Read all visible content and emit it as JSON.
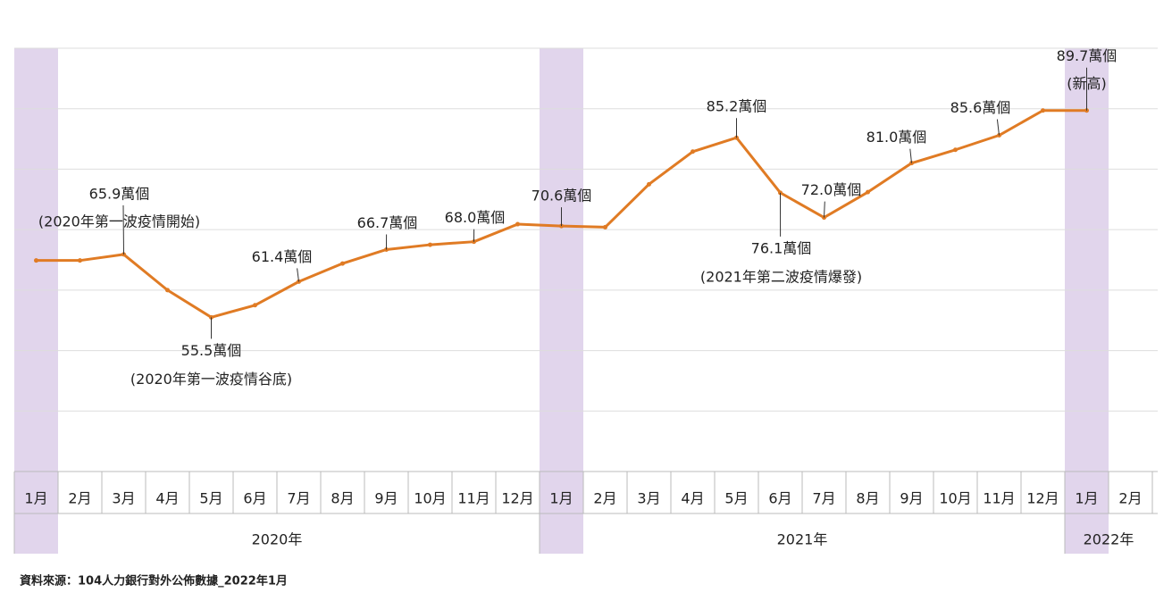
{
  "chart_data": {
    "type": "line",
    "categories": [
      "1月",
      "2月",
      "3月",
      "4月",
      "5月",
      "6月",
      "7月",
      "8月",
      "9月",
      "10月",
      "11月",
      "12月",
      "1月",
      "2月",
      "3月",
      "4月",
      "5月",
      "6月",
      "7月",
      "8月",
      "9月",
      "10月",
      "11月",
      "12月",
      "1月",
      "2月"
    ],
    "groups": [
      "2020年",
      "2021年",
      "2022年"
    ],
    "series": [
      {
        "color": "#e07b24",
        "values": [
          64.9,
          64.9,
          65.9,
          60.0,
          55.5,
          57.5,
          61.4,
          64.4,
          66.7,
          67.5,
          68.0,
          70.9,
          70.6,
          70.4,
          77.5,
          82.9,
          85.2,
          76.1,
          72.0,
          76.2,
          81.0,
          83.2,
          85.6,
          89.7,
          89.7,
          null
        ],
        "value_labels": [
          null,
          null,
          "65.9萬個",
          null,
          "55.5萬個",
          null,
          "61.4萬個",
          null,
          "66.7萬個",
          null,
          "68.0萬個",
          null,
          "70.6萬個",
          null,
          null,
          null,
          "85.2萬個",
          "76.1萬個",
          "72.0萬個",
          null,
          "81.0萬個",
          null,
          "85.6萬個",
          null,
          "89.7萬個",
          null
        ],
        "value_notes": [
          null,
          null,
          "(2020年第一波疫情開始)",
          null,
          "(2020年第一波疫情谷底)",
          null,
          null,
          null,
          null,
          null,
          null,
          null,
          null,
          null,
          null,
          null,
          null,
          "(2021年第二波疫情爆發)",
          null,
          null,
          null,
          null,
          null,
          null,
          "(新高)",
          null
        ]
      }
    ],
    "ylim": [
      30,
      100
    ],
    "yticks": [
      30,
      40,
      50,
      60,
      70,
      80,
      90,
      100
    ],
    "grid": true,
    "highlight_color": "#e1d5ec",
    "source": "資料來源：104人力銀行對外公佈數據_2022年1月"
  }
}
